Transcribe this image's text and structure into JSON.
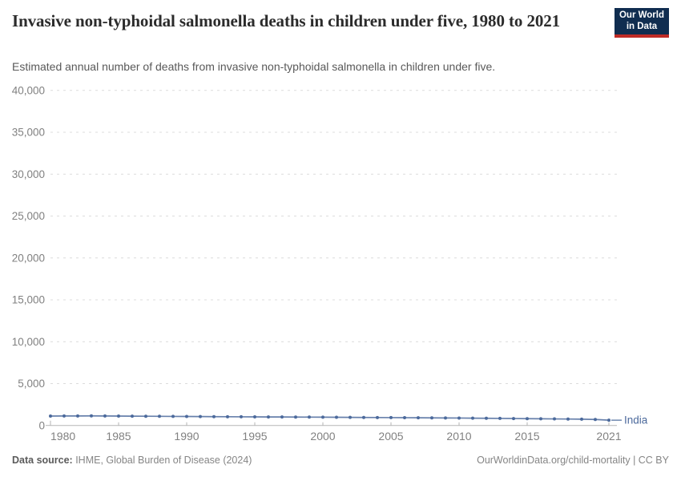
{
  "header": {
    "title": "Invasive non-typhoidal salmonella deaths in children under five, 1980 to 2021",
    "subtitle": "Estimated annual number of deaths from invasive non-typhoidal salmonella in children under five.",
    "logo": {
      "line1": "Our World",
      "line2": "in Data",
      "bg_color": "#102d50",
      "accent_color": "#bf2b26"
    }
  },
  "footer": {
    "source_label": "Data source:",
    "source_value": " IHME, Global Burden of Disease (2024)",
    "link": "OurWorldinData.org/child-mortality | CC BY"
  },
  "chart_data": {
    "type": "line",
    "title": "Invasive non-typhoidal salmonella deaths in children under five, 1980 to 2021",
    "xlabel": "",
    "ylabel": "",
    "xlim": [
      1980,
      2021
    ],
    "ylim": [
      0,
      40000
    ],
    "grid": "horizontal-dashed",
    "legend_position": "end-of-line",
    "x_ticks": [
      1980,
      1985,
      1990,
      1995,
      2000,
      2005,
      2010,
      2015,
      2021
    ],
    "y_ticks": [
      0,
      5000,
      10000,
      15000,
      20000,
      25000,
      30000,
      35000,
      40000
    ],
    "x": [
      1980,
      1981,
      1982,
      1983,
      1984,
      1985,
      1986,
      1987,
      1988,
      1989,
      1990,
      1991,
      1992,
      1993,
      1994,
      1995,
      1996,
      1997,
      1998,
      1999,
      2000,
      2001,
      2002,
      2003,
      2004,
      2005,
      2006,
      2007,
      2008,
      2009,
      2010,
      2011,
      2012,
      2013,
      2014,
      2015,
      2016,
      2017,
      2018,
      2019,
      2020,
      2021
    ],
    "series": [
      {
        "name": "India",
        "color": "#4c6a9c",
        "values": [
          1120,
          1130,
          1135,
          1140,
          1130,
          1120,
          1110,
          1100,
          1090,
          1080,
          1070,
          1060,
          1050,
          1040,
          1030,
          1025,
          1015,
          1010,
          1000,
          995,
          985,
          975,
          965,
          955,
          945,
          935,
          925,
          915,
          905,
          895,
          885,
          870,
          855,
          840,
          825,
          810,
          795,
          780,
          765,
          750,
          710,
          630
        ]
      }
    ],
    "colors": {
      "gridline": "#dcdcdc",
      "axis": "#b5b5b5",
      "tick_label": "#818181"
    }
  }
}
